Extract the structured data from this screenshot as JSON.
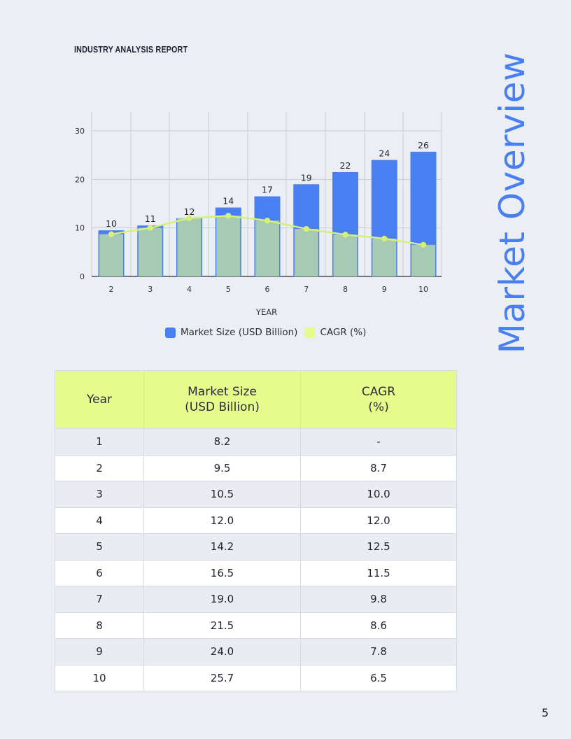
{
  "header": {
    "title": "INDUSTRY ANALYSIS REPORT"
  },
  "side_title": "Market Overview",
  "page_number": "5",
  "colors": {
    "bar": "#4a7ff2",
    "cagr": "#e6fb8c",
    "cagr_line": "#d4f07a",
    "header_fill": "#e6fb8c",
    "title": "#4a7ff2"
  },
  "chart_data": {
    "type": "bar",
    "x": [
      2,
      3,
      4,
      5,
      6,
      7,
      8,
      9,
      10
    ],
    "xlabel": "YEAR",
    "ylabel": "",
    "ylim": [
      0,
      30
    ],
    "yticks": [
      0,
      10,
      20,
      30
    ],
    "grid": true,
    "legend_position": "bottom",
    "series": [
      {
        "name": "Market Size (USD Billion)",
        "type": "bar",
        "values": [
          9.5,
          10.5,
          12.0,
          14.2,
          16.5,
          19.0,
          21.5,
          24.0,
          25.7
        ],
        "labels": [
          "10",
          "11",
          "12",
          "14",
          "17",
          "19",
          "22",
          "24",
          "26"
        ]
      },
      {
        "name": "CAGR (%)",
        "type": "area",
        "values": [
          8.7,
          10.0,
          12.0,
          12.5,
          11.5,
          9.8,
          8.6,
          7.8,
          6.5
        ]
      }
    ]
  },
  "table": {
    "headers": [
      "Year",
      "Market Size\n(USD Billion)",
      "CAGR\n(%)"
    ],
    "rows": [
      [
        "1",
        "8.2",
        "-"
      ],
      [
        "2",
        "9.5",
        "8.7"
      ],
      [
        "3",
        "10.5",
        "10.0"
      ],
      [
        "4",
        "12.0",
        "12.0"
      ],
      [
        "5",
        "14.2",
        "12.5"
      ],
      [
        "6",
        "16.5",
        "11.5"
      ],
      [
        "7",
        "19.0",
        "9.8"
      ],
      [
        "8",
        "21.5",
        "8.6"
      ],
      [
        "9",
        "24.0",
        "7.8"
      ],
      [
        "10",
        "25.7",
        "6.5"
      ]
    ]
  }
}
